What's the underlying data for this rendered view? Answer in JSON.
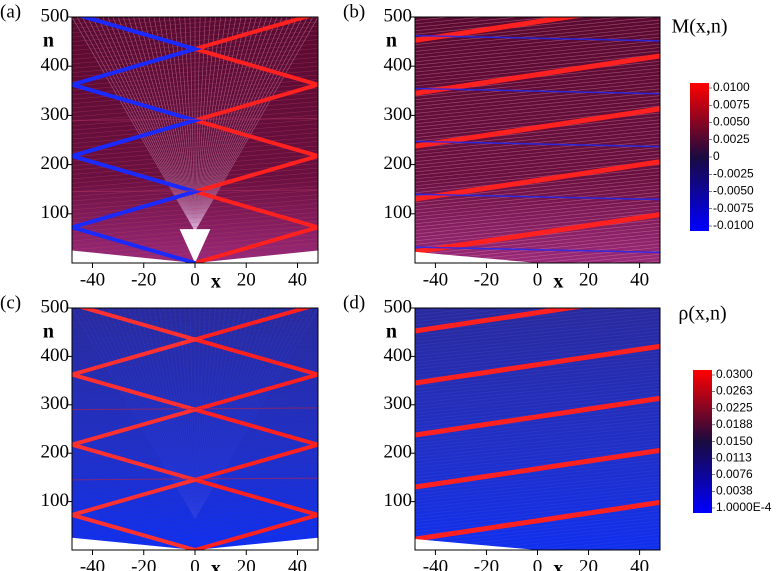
{
  "chart_data": [
    {
      "type": "heatmap",
      "label": "(a)",
      "xlabel": "x",
      "ylabel": "n",
      "pattern": "symmetric",
      "palette": "red-blue",
      "xlim": [
        -48,
        48
      ],
      "ylim": [
        0,
        500
      ],
      "xticks": [
        -40,
        -20,
        0,
        20,
        40
      ],
      "yticks": [
        100,
        200,
        300,
        400,
        500
      ],
      "colorbar": {
        "title": "M(x,n)",
        "clim": [
          -0.01,
          0.01
        ],
        "colors": [
          "#0000ff",
          "#1a0a40",
          "#ff0000"
        ],
        "ticks": [
          {
            "value": 0.01,
            "label": "0.0100"
          },
          0.0075,
          {
            "value": 0.005,
            "label": "0.0050"
          },
          0.0025,
          0,
          -0.0025,
          {
            "value": -0.005,
            "label": "-0.0050"
          },
          -0.0075,
          {
            "value": -0.01,
            "label": "-0.0100"
          }
        ]
      }
    },
    {
      "type": "heatmap",
      "label": "(b)",
      "xlabel": "x",
      "ylabel": "n",
      "pattern": "drift",
      "palette": "red-blue",
      "xlim": [
        -48,
        48
      ],
      "ylim": [
        0,
        500
      ],
      "xticks": [
        -40,
        -20,
        0,
        20,
        40
      ],
      "yticks": [
        100,
        200,
        300,
        400,
        500
      ]
    },
    {
      "type": "heatmap",
      "label": "(c)",
      "xlabel": "x",
      "ylabel": "n",
      "pattern": "symmetric",
      "palette": "blue-red",
      "xlim": [
        -48,
        48
      ],
      "ylim": [
        0,
        500
      ],
      "xticks": [
        -40,
        -20,
        0,
        20,
        40
      ],
      "yticks": [
        100,
        200,
        300,
        400,
        500
      ],
      "colorbar": {
        "title": "ρ(x,n)",
        "clim": [
          0.0001,
          0.03
        ],
        "colors": [
          "#0000ff",
          "#1a0a40",
          "#ff0000"
        ],
        "ticks": [
          {
            "value": 0.03,
            "label": "0.0300"
          },
          0.0263,
          0.0225,
          0.0188,
          {
            "value": 0.015,
            "label": "0.0150"
          },
          0.0113,
          0.0076,
          0.0038,
          {
            "value": 0.0001,
            "label": "1.0000E-4"
          }
        ]
      }
    },
    {
      "type": "heatmap",
      "label": "(d)",
      "xlabel": "x",
      "ylabel": "n",
      "pattern": "drift",
      "palette": "blue-red",
      "xlim": [
        -48,
        48
      ],
      "ylim": [
        0,
        500
      ],
      "xticks": [
        -40,
        -20,
        0,
        20,
        40
      ],
      "yticks": [
        100,
        200,
        300,
        400,
        500
      ]
    }
  ]
}
